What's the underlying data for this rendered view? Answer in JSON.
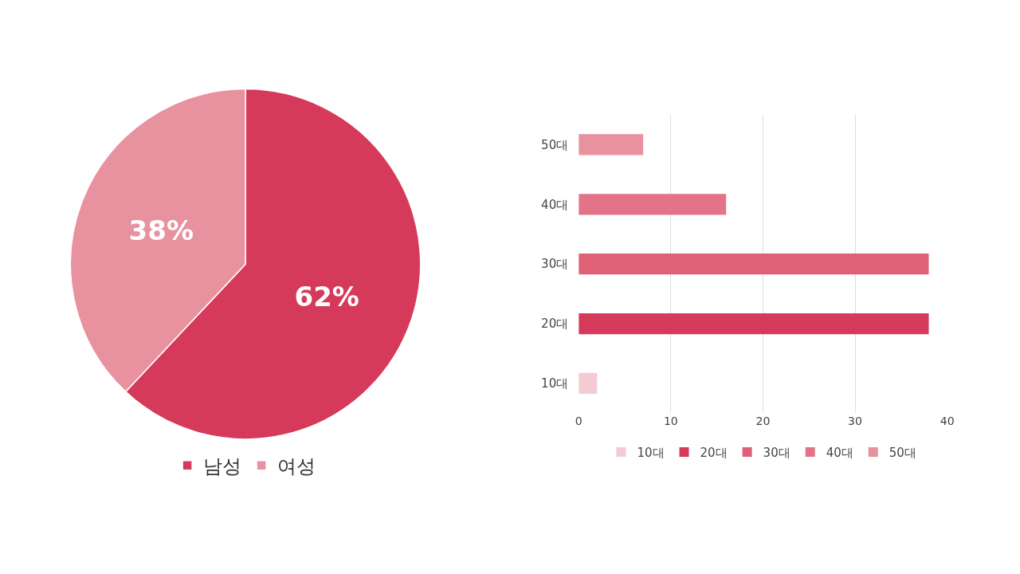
{
  "chart_data": [
    {
      "type": "pie",
      "categories": [
        "남성",
        "여성"
      ],
      "values": [
        62,
        38
      ],
      "colors": [
        "#d63a5a",
        "#e8919f"
      ],
      "value_labels": [
        "62%",
        "38%"
      ],
      "legend": "bottom"
    },
    {
      "type": "bar",
      "orientation": "horizontal",
      "categories": [
        "50대",
        "40대",
        "30대",
        "20대",
        "10대"
      ],
      "series": [
        {
          "name": "10대",
          "color": "#f2cbd3",
          "values": [
            null,
            null,
            null,
            null,
            2
          ]
        },
        {
          "name": "20대",
          "color": "#d63a5a",
          "values": [
            null,
            null,
            null,
            38,
            null
          ]
        },
        {
          "name": "30대",
          "color": "#e06078",
          "values": [
            null,
            null,
            38,
            null,
            null
          ]
        },
        {
          "name": "40대",
          "color": "#e37488",
          "values": [
            null,
            16,
            null,
            null,
            null
          ]
        },
        {
          "name": "50대",
          "color": "#e8919f",
          "values": [
            7,
            null,
            null,
            null,
            null
          ]
        }
      ],
      "xlim": [
        0,
        40
      ],
      "xticks": [
        0,
        10,
        20,
        30,
        40
      ],
      "grid": "x",
      "legend": "bottom"
    }
  ]
}
